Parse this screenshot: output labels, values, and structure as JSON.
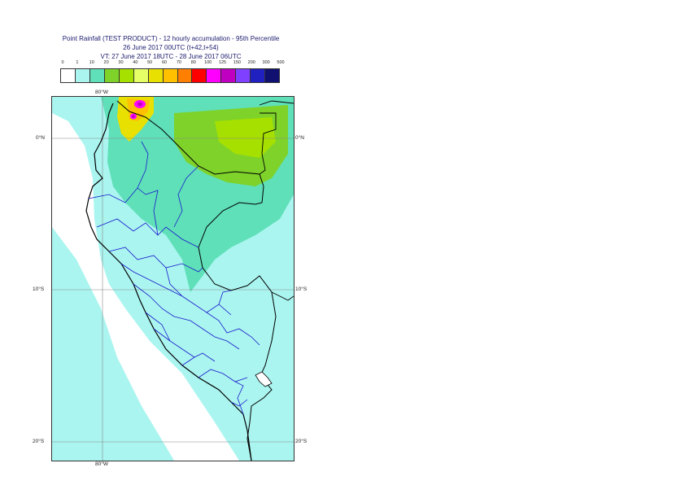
{
  "title": {
    "line1": "Point Rainfall (TEST PRODUCT) - 12 hourly accumulation - 95th Percentile",
    "line2": "26 June 2017 00UTC (t+42,t+54)",
    "line3": "VT: 27 June 2017 18UTC - 28 June 2017 06UTC"
  },
  "legend": {
    "labels": [
      "0",
      "1",
      "10",
      "20",
      "30",
      "40",
      "50",
      "60",
      "70",
      "80",
      "100",
      "125",
      "150",
      "200",
      "300",
      "500"
    ],
    "colors": [
      "#ffffff",
      "#aaf5f0",
      "#5fe0b8",
      "#7ed22a",
      "#a6e000",
      "#e6ff66",
      "#e8e000",
      "#ffc000",
      "#ff8000",
      "#ff0000",
      "#ff00ff",
      "#c000c0",
      "#8040ff",
      "#2020c0",
      "#101070"
    ]
  },
  "axes": {
    "top_lon_label": "80°W",
    "bottom_lon_label": "80°W",
    "lat_labels": [
      "0°N",
      "10°S",
      "20°S"
    ]
  }
}
